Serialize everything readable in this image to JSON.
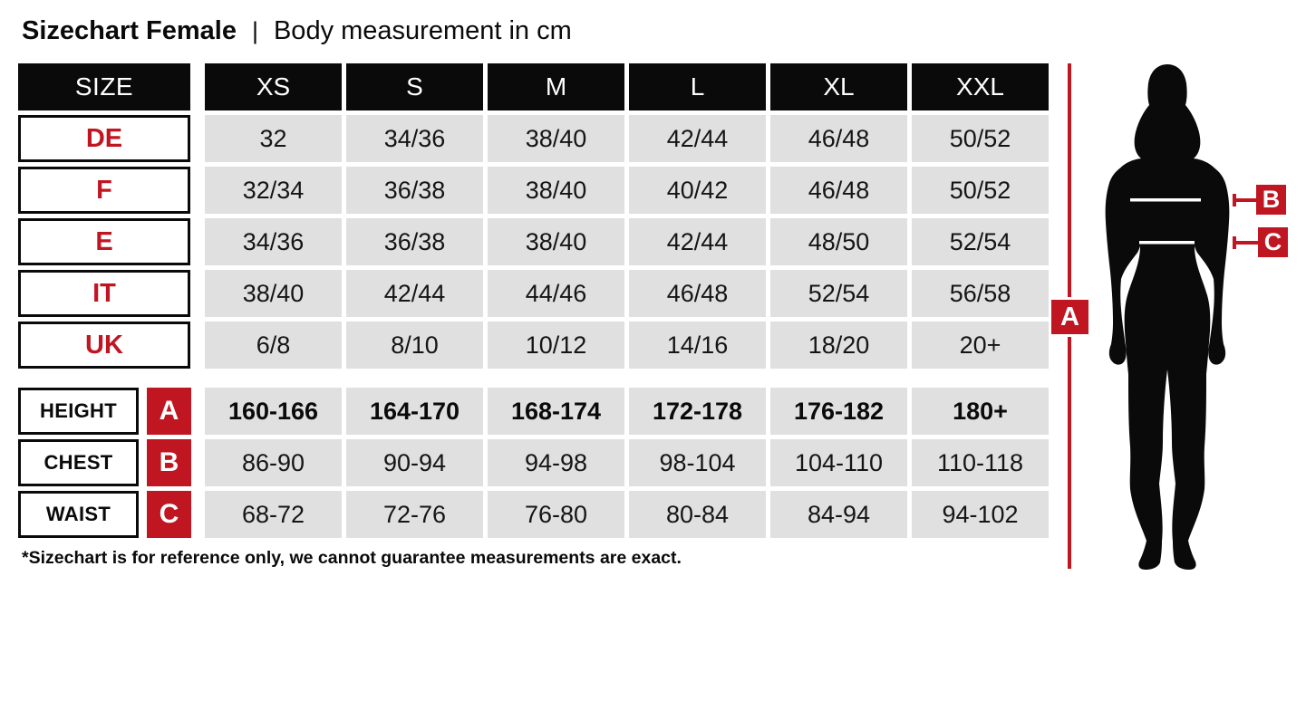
{
  "title": {
    "main": "Sizechart Female",
    "separator": "|",
    "subtitle": "Body measurement in cm"
  },
  "colors": {
    "accent_red": "#c01622",
    "cell_gray": "#e0e0e0",
    "black": "#0a0a0a"
  },
  "footnote": "*Sizechart is for reference only, we cannot guarantee measurements are exact.",
  "chart_data": {
    "type": "table",
    "title": "Sizechart Female | Body measurement in cm",
    "units": "cm",
    "header_label": "SIZE",
    "columns": [
      "XS",
      "S",
      "M",
      "L",
      "XL",
      "XXL"
    ],
    "region_rows": [
      {
        "label": "DE",
        "values": [
          "32",
          "34/36",
          "38/40",
          "42/44",
          "46/48",
          "50/52"
        ]
      },
      {
        "label": "F",
        "values": [
          "32/34",
          "36/38",
          "38/40",
          "40/42",
          "46/48",
          "50/52"
        ]
      },
      {
        "label": "E",
        "values": [
          "34/36",
          "36/38",
          "38/40",
          "42/44",
          "48/50",
          "52/54"
        ]
      },
      {
        "label": "IT",
        "values": [
          "38/40",
          "42/44",
          "44/46",
          "46/48",
          "52/54",
          "56/58"
        ]
      },
      {
        "label": "UK",
        "values": [
          "6/8",
          "8/10",
          "10/12",
          "14/16",
          "18/20",
          "20+"
        ]
      }
    ],
    "measurement_rows": [
      {
        "label": "HEIGHT",
        "marker": "A",
        "bold": true,
        "values": [
          "160-166",
          "164-170",
          "168-174",
          "172-178",
          "176-182",
          "180+"
        ]
      },
      {
        "label": "CHEST",
        "marker": "B",
        "bold": false,
        "values": [
          "86-90",
          "90-94",
          "94-98",
          "98-104",
          "104-110",
          "110-118"
        ]
      },
      {
        "label": "WAIST",
        "marker": "C",
        "bold": false,
        "values": [
          "68-72",
          "72-76",
          "76-80",
          "80-84",
          "84-94",
          "94-102"
        ]
      }
    ],
    "footnote": "*Sizechart is for reference only, we cannot guarantee measurements are exact."
  }
}
